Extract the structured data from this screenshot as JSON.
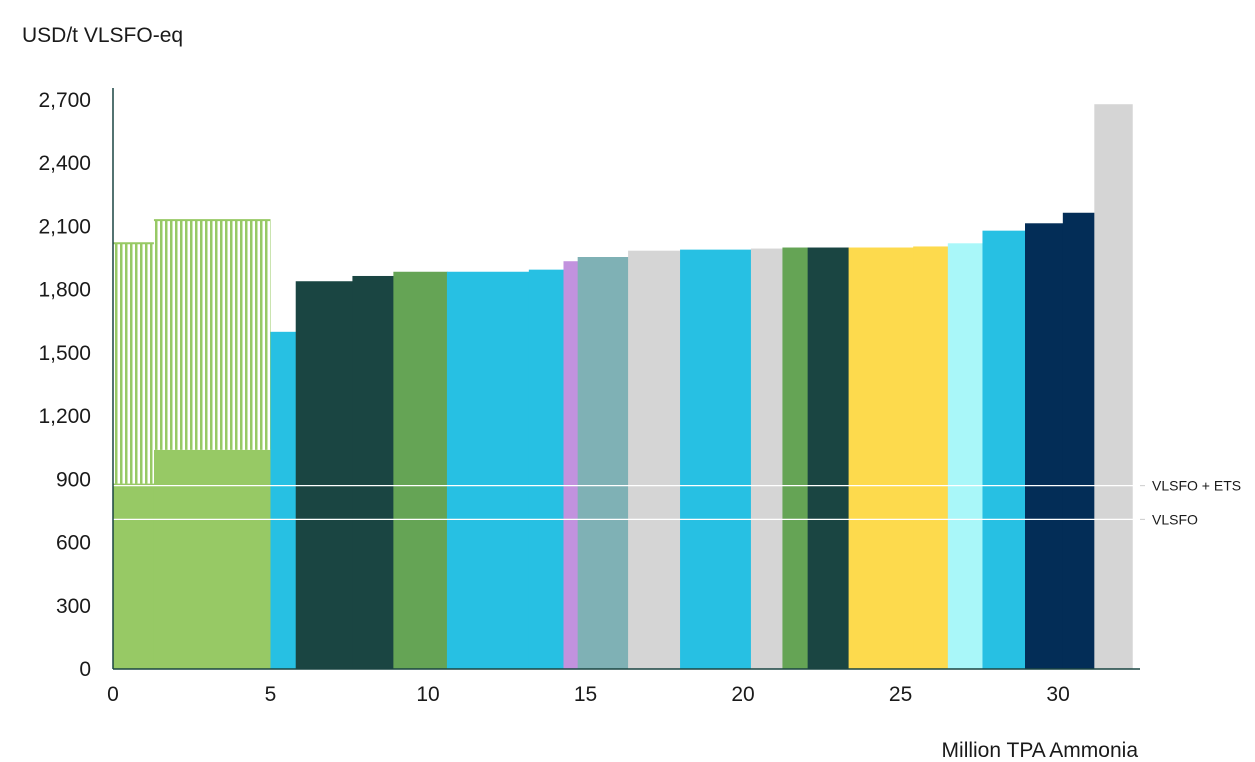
{
  "chart_data": {
    "type": "bar",
    "subtype": "cost-curve",
    "title": "",
    "ylabel": "USD/t VLSFO-eq",
    "xlabel": "Million TPA Ammonia",
    "xlim": [
      0,
      32.6
    ],
    "ylim": [
      0,
      2700
    ],
    "x_ticks": [
      0,
      5,
      10,
      15,
      20,
      25,
      30
    ],
    "y_ticks": [
      0,
      300,
      600,
      900,
      1200,
      1500,
      1800,
      2100,
      2400,
      2700
    ],
    "x_tick_labels": [
      "0",
      "5",
      "10",
      "15",
      "20",
      "25",
      "30"
    ],
    "y_tick_labels": [
      "0",
      "300",
      "600",
      "900",
      "1,200",
      "1,500",
      "1,800",
      "2,100",
      "2,400",
      "2,700"
    ],
    "grid": false,
    "reference_lines": [
      {
        "label": "VLSFO + ETS",
        "value": 870
      },
      {
        "label": "VLSFO",
        "value": 710
      }
    ],
    "bars": [
      {
        "x0": 0.0,
        "x1": 1.3,
        "value": 880,
        "color": "#97c965"
      },
      {
        "x0": 1.3,
        "x1": 5.0,
        "value": 1040,
        "color": "#97c965"
      },
      {
        "x0": 5.0,
        "x1": 5.8,
        "value": 1600,
        "color": "#27c0e3"
      },
      {
        "x0": 5.8,
        "x1": 7.6,
        "value": 1840,
        "color": "#1a4542"
      },
      {
        "x0": 7.6,
        "x1": 8.9,
        "value": 1865,
        "color": "#1a4542"
      },
      {
        "x0": 8.9,
        "x1": 10.6,
        "value": 1885,
        "color": "#65a455"
      },
      {
        "x0": 10.6,
        "x1": 13.2,
        "value": 1885,
        "color": "#27c0e3"
      },
      {
        "x0": 13.2,
        "x1": 14.3,
        "value": 1895,
        "color": "#27c0e3"
      },
      {
        "x0": 14.3,
        "x1": 14.75,
        "value": 1935,
        "color": "#c292de"
      },
      {
        "x0": 14.75,
        "x1": 16.35,
        "value": 1955,
        "color": "#7fb1b5"
      },
      {
        "x0": 16.35,
        "x1": 18.0,
        "value": 1985,
        "color": "#d5d5d5"
      },
      {
        "x0": 18.0,
        "x1": 20.25,
        "value": 1990,
        "color": "#27c0e3"
      },
      {
        "x0": 20.25,
        "x1": 21.25,
        "value": 1995,
        "color": "#d5d5d5"
      },
      {
        "x0": 21.25,
        "x1": 22.05,
        "value": 2000,
        "color": "#65a455"
      },
      {
        "x0": 22.05,
        "x1": 23.35,
        "value": 2000,
        "color": "#1a4542"
      },
      {
        "x0": 23.35,
        "x1": 25.4,
        "value": 2000,
        "color": "#fdda4d"
      },
      {
        "x0": 25.4,
        "x1": 26.5,
        "value": 2005,
        "color": "#fdda4d"
      },
      {
        "x0": 26.5,
        "x1": 27.6,
        "value": 2020,
        "color": "#a9f7f9"
      },
      {
        "x0": 27.6,
        "x1": 28.95,
        "value": 2080,
        "color": "#27c0e3"
      },
      {
        "x0": 28.95,
        "x1": 30.15,
        "value": 2115,
        "color": "#032d57"
      },
      {
        "x0": 30.15,
        "x1": 31.15,
        "value": 2165,
        "color": "#032d57"
      },
      {
        "x0": 31.15,
        "x1": 32.35,
        "value": 2680,
        "color": "#d5d5d5"
      }
    ],
    "hatched_bars": [
      {
        "x0": 0.0,
        "x1": 1.3,
        "bottom": 880,
        "top": 2020,
        "color": "#97c965"
      },
      {
        "x0": 1.3,
        "x1": 5.0,
        "bottom": 1040,
        "top": 2130,
        "color": "#97c965"
      }
    ]
  }
}
